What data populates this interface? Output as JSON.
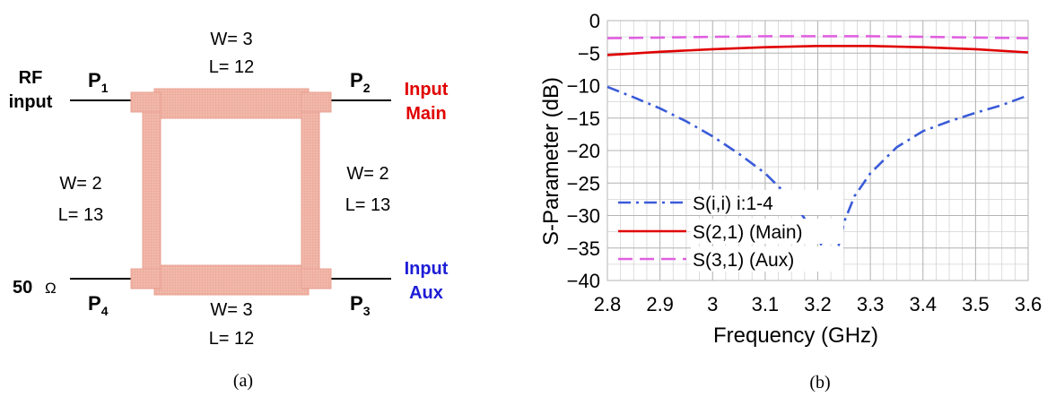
{
  "panel_a": {
    "caption": "(a)",
    "rf_input": [
      "RF",
      "input"
    ],
    "ports": [
      {
        "main": "P",
        "sub": "1"
      },
      {
        "main": "P",
        "sub": "2"
      },
      {
        "main": "P",
        "sub": "3"
      },
      {
        "main": "P",
        "sub": "4"
      }
    ],
    "input_main": [
      "Input",
      "Main"
    ],
    "input_aux": [
      "Input",
      "Aux"
    ],
    "term_value": "50",
    "term_unit": "Ω",
    "top_w": "W= 3",
    "top_l": "L= 12",
    "bottom_w": "W= 3",
    "bottom_l": "L= 12",
    "left_w": "W= 2",
    "left_l": "L= 13",
    "right_w": "W= 2",
    "right_l": "L= 13",
    "colors": {
      "trace": "#f0b6a8",
      "trace_edge": "#e8a090",
      "main": "#e00000",
      "aux": "#1d1dd6"
    }
  },
  "panel_b": {
    "caption": "(b)"
  },
  "chart_data": {
    "type": "line",
    "xlabel": "Frequency (GHz)",
    "ylabel": "S-Parameter (dB)",
    "xlim": [
      2.8,
      3.6
    ],
    "ylim": [
      -40,
      0
    ],
    "xticks": [
      2.8,
      2.9,
      3,
      3.1,
      3.2,
      3.3,
      3.4,
      3.5,
      3.6
    ],
    "xtick_labels": [
      "2.8",
      "2.9",
      "3",
      "3.1",
      "3.2",
      "3.3",
      "3.4",
      "3.5",
      "3.6"
    ],
    "yticks": [
      0,
      -5,
      -10,
      -15,
      -20,
      -25,
      -30,
      -35,
      -40
    ],
    "ytick_labels": [
      "0",
      "−5",
      "−10",
      "−15",
      "−20",
      "−25",
      "−30",
      "−35",
      "−40"
    ],
    "grid": true,
    "legend_position": "bottom-left",
    "series": [
      {
        "name": "S(i,i) i:1-4",
        "color": "#3a5bd9",
        "dash": "dashdot",
        "x": [
          2.8,
          2.85,
          2.9,
          2.95,
          3.0,
          3.05,
          3.1,
          3.15,
          3.2,
          3.22,
          3.23,
          3.24,
          3.25,
          3.27,
          3.3,
          3.35,
          3.4,
          3.45,
          3.5,
          3.55,
          3.6
        ],
        "values": [
          -10.2,
          -11.8,
          -13.5,
          -15.5,
          -17.8,
          -20.5,
          -23.5,
          -27.5,
          -33.5,
          -36.5,
          -36.3,
          -34.5,
          -31,
          -27,
          -23.5,
          -19.5,
          -17,
          -15.5,
          -14.2,
          -13,
          -11.5
        ]
      },
      {
        "name": "S(2,1) (Main)",
        "color": "#e00000",
        "dash": "solid",
        "x": [
          2.8,
          2.9,
          3.0,
          3.1,
          3.2,
          3.3,
          3.4,
          3.5,
          3.6
        ],
        "values": [
          -5.3,
          -4.8,
          -4.4,
          -4.1,
          -3.9,
          -3.9,
          -4.1,
          -4.4,
          -4.9
        ]
      },
      {
        "name": "S(3,1) (Aux)",
        "color": "#e060e0",
        "dash": "dashed",
        "x": [
          2.8,
          2.9,
          3.0,
          3.1,
          3.2,
          3.3,
          3.4,
          3.5,
          3.6
        ],
        "values": [
          -2.7,
          -2.6,
          -2.5,
          -2.4,
          -2.4,
          -2.4,
          -2.5,
          -2.6,
          -2.7
        ]
      }
    ]
  }
}
